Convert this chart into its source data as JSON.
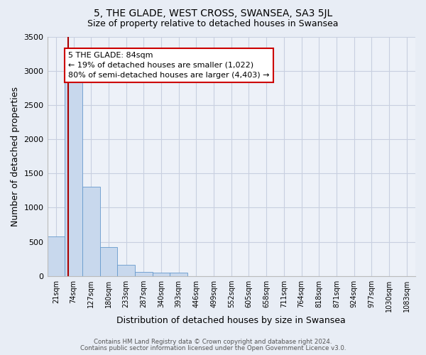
{
  "title": "5, THE GLADE, WEST CROSS, SWANSEA, SA3 5JL",
  "subtitle": "Size of property relative to detached houses in Swansea",
  "xlabel": "Distribution of detached houses by size in Swansea",
  "ylabel": "Number of detached properties",
  "bar_labels": [
    "21sqm",
    "74sqm",
    "127sqm",
    "180sqm",
    "233sqm",
    "287sqm",
    "340sqm",
    "393sqm",
    "446sqm",
    "499sqm",
    "552sqm",
    "605sqm",
    "658sqm",
    "711sqm",
    "764sqm",
    "818sqm",
    "871sqm",
    "924sqm",
    "977sqm",
    "1030sqm",
    "1083sqm"
  ],
  "bar_values": [
    580,
    2950,
    1310,
    420,
    160,
    65,
    50,
    50,
    0,
    0,
    0,
    0,
    0,
    0,
    0,
    0,
    0,
    0,
    0,
    0,
    0
  ],
  "bar_color": "#c8d8ed",
  "bar_edge_color": "#6699cc",
  "ylim": [
    0,
    3500
  ],
  "yticks": [
    0,
    500,
    1000,
    1500,
    2000,
    2500,
    3000,
    3500
  ],
  "vline_pos": 1.15,
  "vline_color": "#aa0000",
  "annotation_title": "5 THE GLADE: 84sqm",
  "annotation_line1": "← 19% of detached houses are smaller (1,022)",
  "annotation_line2": "80% of semi-detached houses are larger (4,403) →",
  "annotation_box_facecolor": "#ffffff",
  "annotation_box_edgecolor": "#cc0000",
  "footnote1": "Contains HM Land Registry data © Crown copyright and database right 2024.",
  "footnote2": "Contains public sector information licensed under the Open Government Licence v3.0.",
  "bg_color": "#e8edf5",
  "plot_bg_color": "#edf1f8",
  "title_fontsize": 10,
  "subtitle_fontsize": 9,
  "grid_color": "#c8cfe0"
}
